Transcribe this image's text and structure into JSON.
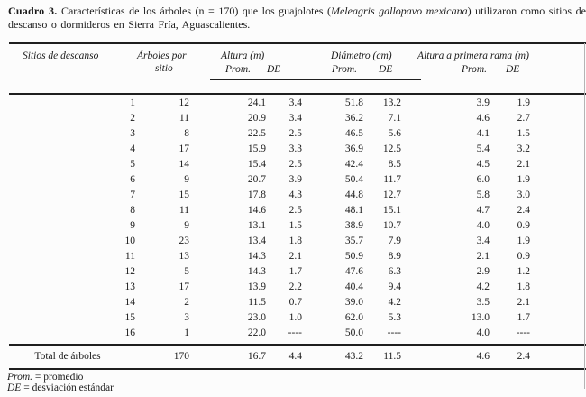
{
  "caption": {
    "label": "Cuadro 3.",
    "text_before_species": " Características de los árboles (n = 170) que los guajolotes (",
    "species": "Meleagris gallopavo mexicana",
    "text_after_species": ") utilizaron como sitios de",
    "line2": "descanso o dormideros en Sierra Fría, Aguascalientes."
  },
  "table": {
    "headers": {
      "sitios": "Sitios de descanso",
      "arboles_line1": "Árboles por",
      "arboles_line2": "sitio",
      "altura_group": "Altura (m)",
      "diametro_group": "Diámetro (cm)",
      "rama_group": "Altura a primera rama (m)",
      "prom": "Prom.",
      "de": "DE"
    },
    "rows": [
      [
        "1",
        "12",
        "24.1",
        "3.4",
        "51.8",
        "13.2",
        "3.9",
        "1.9"
      ],
      [
        "2",
        "11",
        "20.9",
        "3.4",
        "36.2",
        "7.1",
        "4.6",
        "2.7"
      ],
      [
        "3",
        "8",
        "22.5",
        "2.5",
        "46.5",
        "5.6",
        "4.1",
        "1.5"
      ],
      [
        "4",
        "17",
        "15.9",
        "3.3",
        "36.9",
        "12.5",
        "5.4",
        "3.2"
      ],
      [
        "5",
        "14",
        "15.4",
        "2.5",
        "42.4",
        "8.5",
        "4.5",
        "2.1"
      ],
      [
        "6",
        "9",
        "20.7",
        "3.9",
        "50.4",
        "11.7",
        "6.0",
        "1.9"
      ],
      [
        "7",
        "15",
        "17.8",
        "4.3",
        "44.8",
        "12.7",
        "5.8",
        "3.0"
      ],
      [
        "8",
        "11",
        "14.6",
        "2.5",
        "48.1",
        "15.1",
        "4.7",
        "2.4"
      ],
      [
        "9",
        "9",
        "13.1",
        "1.5",
        "38.9",
        "10.7",
        "4.0",
        "0.9"
      ],
      [
        "10",
        "23",
        "13.4",
        "1.8",
        "35.7",
        "7.9",
        "3.4",
        "1.9"
      ],
      [
        "11",
        "13",
        "14.3",
        "2.1",
        "50.9",
        "8.9",
        "2.1",
        "0.9"
      ],
      [
        "12",
        "5",
        "14.3",
        "1.7",
        "47.6",
        "6.3",
        "2.9",
        "1.2"
      ],
      [
        "13",
        "17",
        "13.9",
        "2.2",
        "40.4",
        "9.4",
        "4.2",
        "1.8"
      ],
      [
        "14",
        "2",
        "11.5",
        "0.7",
        "39.0",
        "4.2",
        "3.5",
        "2.1"
      ],
      [
        "15",
        "3",
        "23.0",
        "1.0",
        "62.0",
        "5.3",
        "13.0",
        "1.7"
      ],
      [
        "16",
        "1",
        "22.0",
        "----",
        "50.0",
        "----",
        "4.0",
        "----"
      ]
    ],
    "total": {
      "label": "Total de árboles",
      "values": [
        "170",
        "16.7",
        "4.4",
        "43.2",
        "11.5",
        "4.6",
        "2.4"
      ]
    }
  },
  "footnotes": [
    {
      "term": "Prom.",
      "definition": " = promedio"
    },
    {
      "term": "DE",
      "definition": " = desviación estándar"
    }
  ]
}
